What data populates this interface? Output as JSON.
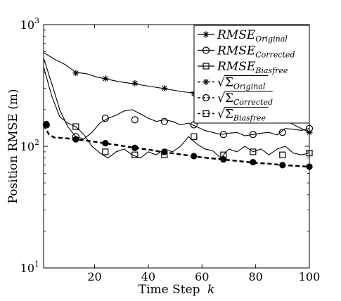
{
  "chart_data": {
    "type": "line",
    "xlabel_text": "Time Step",
    "xlabel_var": "k",
    "ylabel": "Position RMSE (m)",
    "xlim": [
      1,
      100
    ],
    "ylim": [
      10,
      1000
    ],
    "yscale": "log",
    "xticks": [
      20,
      40,
      60,
      80,
      100
    ],
    "yticks": [
      {
        "value": 10,
        "base": "10",
        "exp": "1"
      },
      {
        "value": 100,
        "base": "10",
        "exp": "2"
      },
      {
        "value": 1000,
        "base": "10",
        "exp": "3"
      }
    ],
    "legend_position": "top-right",
    "series": [
      {
        "name": "RMSE_Original",
        "legend_base": "RMSE",
        "legend_sub": "Original",
        "legend_sqrt": false,
        "line_style": "solid",
        "marker": "asterisk",
        "x": [
          1,
          5,
          9,
          13,
          17,
          21,
          25,
          29,
          33,
          37,
          41,
          45,
          49,
          53,
          57,
          61,
          65,
          69,
          73,
          77,
          81,
          85,
          89,
          93,
          97,
          100
        ],
        "y": [
          590,
          520,
          470,
          405,
          395,
          370,
          355,
          340,
          330,
          320,
          310,
          300,
          290,
          280,
          275,
          265,
          255,
          240,
          230,
          215,
          200,
          185,
          170,
          155,
          140,
          130
        ],
        "marker_x": [
          13,
          24,
          35,
          46,
          57,
          68,
          79,
          90,
          100
        ],
        "marker_y": [
          400,
          360,
          330,
          300,
          270,
          240,
          205,
          170,
          130
        ]
      },
      {
        "name": "RMSE_Corrected",
        "legend_base": "RMSE",
        "legend_sub": "Corrected",
        "legend_sqrt": false,
        "line_style": "solid",
        "marker": "circle",
        "x": [
          1,
          4,
          7,
          10,
          13,
          16,
          19,
          22,
          25,
          28,
          31,
          34,
          37,
          40,
          43,
          46,
          49,
          52,
          55,
          58,
          61,
          64,
          67,
          70,
          73,
          76,
          79,
          82,
          85,
          88,
          91,
          94,
          97,
          100
        ],
        "y": [
          530,
          330,
          200,
          145,
          120,
          115,
          130,
          155,
          170,
          180,
          195,
          200,
          185,
          170,
          160,
          165,
          160,
          150,
          155,
          145,
          135,
          130,
          125,
          128,
          130,
          122,
          125,
          128,
          130,
          124,
          140,
          138,
          135,
          140
        ],
        "marker_x": [
          2,
          13,
          24,
          35,
          46,
          57,
          68,
          79,
          90,
          100
        ],
        "marker_y": [
          150,
          120,
          170,
          165,
          160,
          150,
          125,
          125,
          130,
          140
        ]
      },
      {
        "name": "RMSE_Biasfree",
        "legend_base": "RMSE",
        "legend_sub": "Biasfree",
        "legend_sqrt": false,
        "line_style": "solid",
        "marker": "square",
        "x": [
          1,
          4,
          7,
          10,
          13,
          16,
          19,
          22,
          25,
          28,
          31,
          34,
          37,
          40,
          43,
          46,
          49,
          52,
          55,
          58,
          61,
          64,
          67,
          70,
          73,
          76,
          79,
          82,
          85,
          88,
          91,
          94,
          97,
          100
        ],
        "y": [
          450,
          260,
          175,
          155,
          145,
          125,
          100,
          88,
          80,
          90,
          95,
          85,
          80,
          90,
          85,
          95,
          90,
          100,
          120,
          105,
          95,
          92,
          80,
          95,
          90,
          100,
          90,
          95,
          85,
          95,
          100,
          88,
          85,
          88
        ],
        "marker_x": [
          13,
          24,
          35,
          46,
          57,
          68,
          79,
          90,
          100
        ],
        "marker_y": [
          145,
          90,
          85,
          85,
          120,
          85,
          90,
          85,
          88
        ]
      },
      {
        "name": "sqrt(Sigma_Original)",
        "legend_base": "Σ",
        "legend_sub": "Original",
        "legend_sqrt": true,
        "line_style": "dashed",
        "marker": "asterisk",
        "x": [
          1,
          3,
          5,
          8,
          10,
          13,
          16,
          20,
          25,
          30,
          35,
          40,
          45,
          50,
          55,
          60,
          65,
          70,
          75,
          80,
          85,
          90,
          95,
          100
        ],
        "y": [
          150,
          125,
          118,
          117,
          116,
          114,
          112,
          109,
          105,
          101,
          97,
          94,
          90,
          87,
          84,
          81,
          79,
          77,
          75,
          73,
          72,
          70,
          69,
          68
        ],
        "marker_x": [
          2,
          13,
          24,
          35,
          46,
          57,
          68,
          79,
          90,
          100
        ],
        "marker_y": [
          152,
          114,
          106,
          97,
          90,
          83,
          78,
          74,
          70,
          68
        ]
      },
      {
        "name": "sqrt(Sigma_Corrected)",
        "legend_base": "Σ",
        "legend_sub": "Corrected",
        "legend_sqrt": true,
        "line_style": "dashed",
        "marker": "circle",
        "x": [
          1,
          3,
          5,
          8,
          10,
          13,
          16,
          20,
          25,
          30,
          35,
          40,
          45,
          50,
          55,
          60,
          65,
          70,
          75,
          80,
          85,
          90,
          95,
          100
        ],
        "y": [
          150,
          125,
          118,
          117,
          116,
          114,
          112,
          109,
          105,
          101,
          97,
          94,
          90,
          87,
          84,
          81,
          79,
          77,
          75,
          73,
          72,
          70,
          69,
          68
        ],
        "marker_x": [
          2,
          13,
          24,
          35,
          46,
          57,
          68,
          79,
          90,
          100
        ],
        "marker_y": [
          152,
          114,
          106,
          97,
          90,
          83,
          78,
          74,
          70,
          68
        ]
      },
      {
        "name": "sqrt(Sigma_Biasfree)",
        "legend_base": "Σ",
        "legend_sub": "Biasfree",
        "legend_sqrt": true,
        "line_style": "dashed",
        "marker": "square",
        "x": [
          1,
          3,
          5,
          8,
          10,
          13,
          16,
          20,
          25,
          30,
          35,
          40,
          45,
          50,
          55,
          60,
          65,
          70,
          75,
          80,
          85,
          90,
          95,
          100
        ],
        "y": [
          150,
          125,
          118,
          117,
          116,
          114,
          112,
          109,
          105,
          101,
          97,
          94,
          90,
          87,
          84,
          81,
          79,
          77,
          75,
          73,
          72,
          70,
          69,
          68
        ],
        "marker_x": [
          2,
          13,
          24,
          35,
          46,
          57,
          68,
          79,
          90,
          100
        ],
        "marker_y": [
          152,
          114,
          106,
          97,
          90,
          83,
          78,
          74,
          70,
          68
        ]
      }
    ]
  }
}
